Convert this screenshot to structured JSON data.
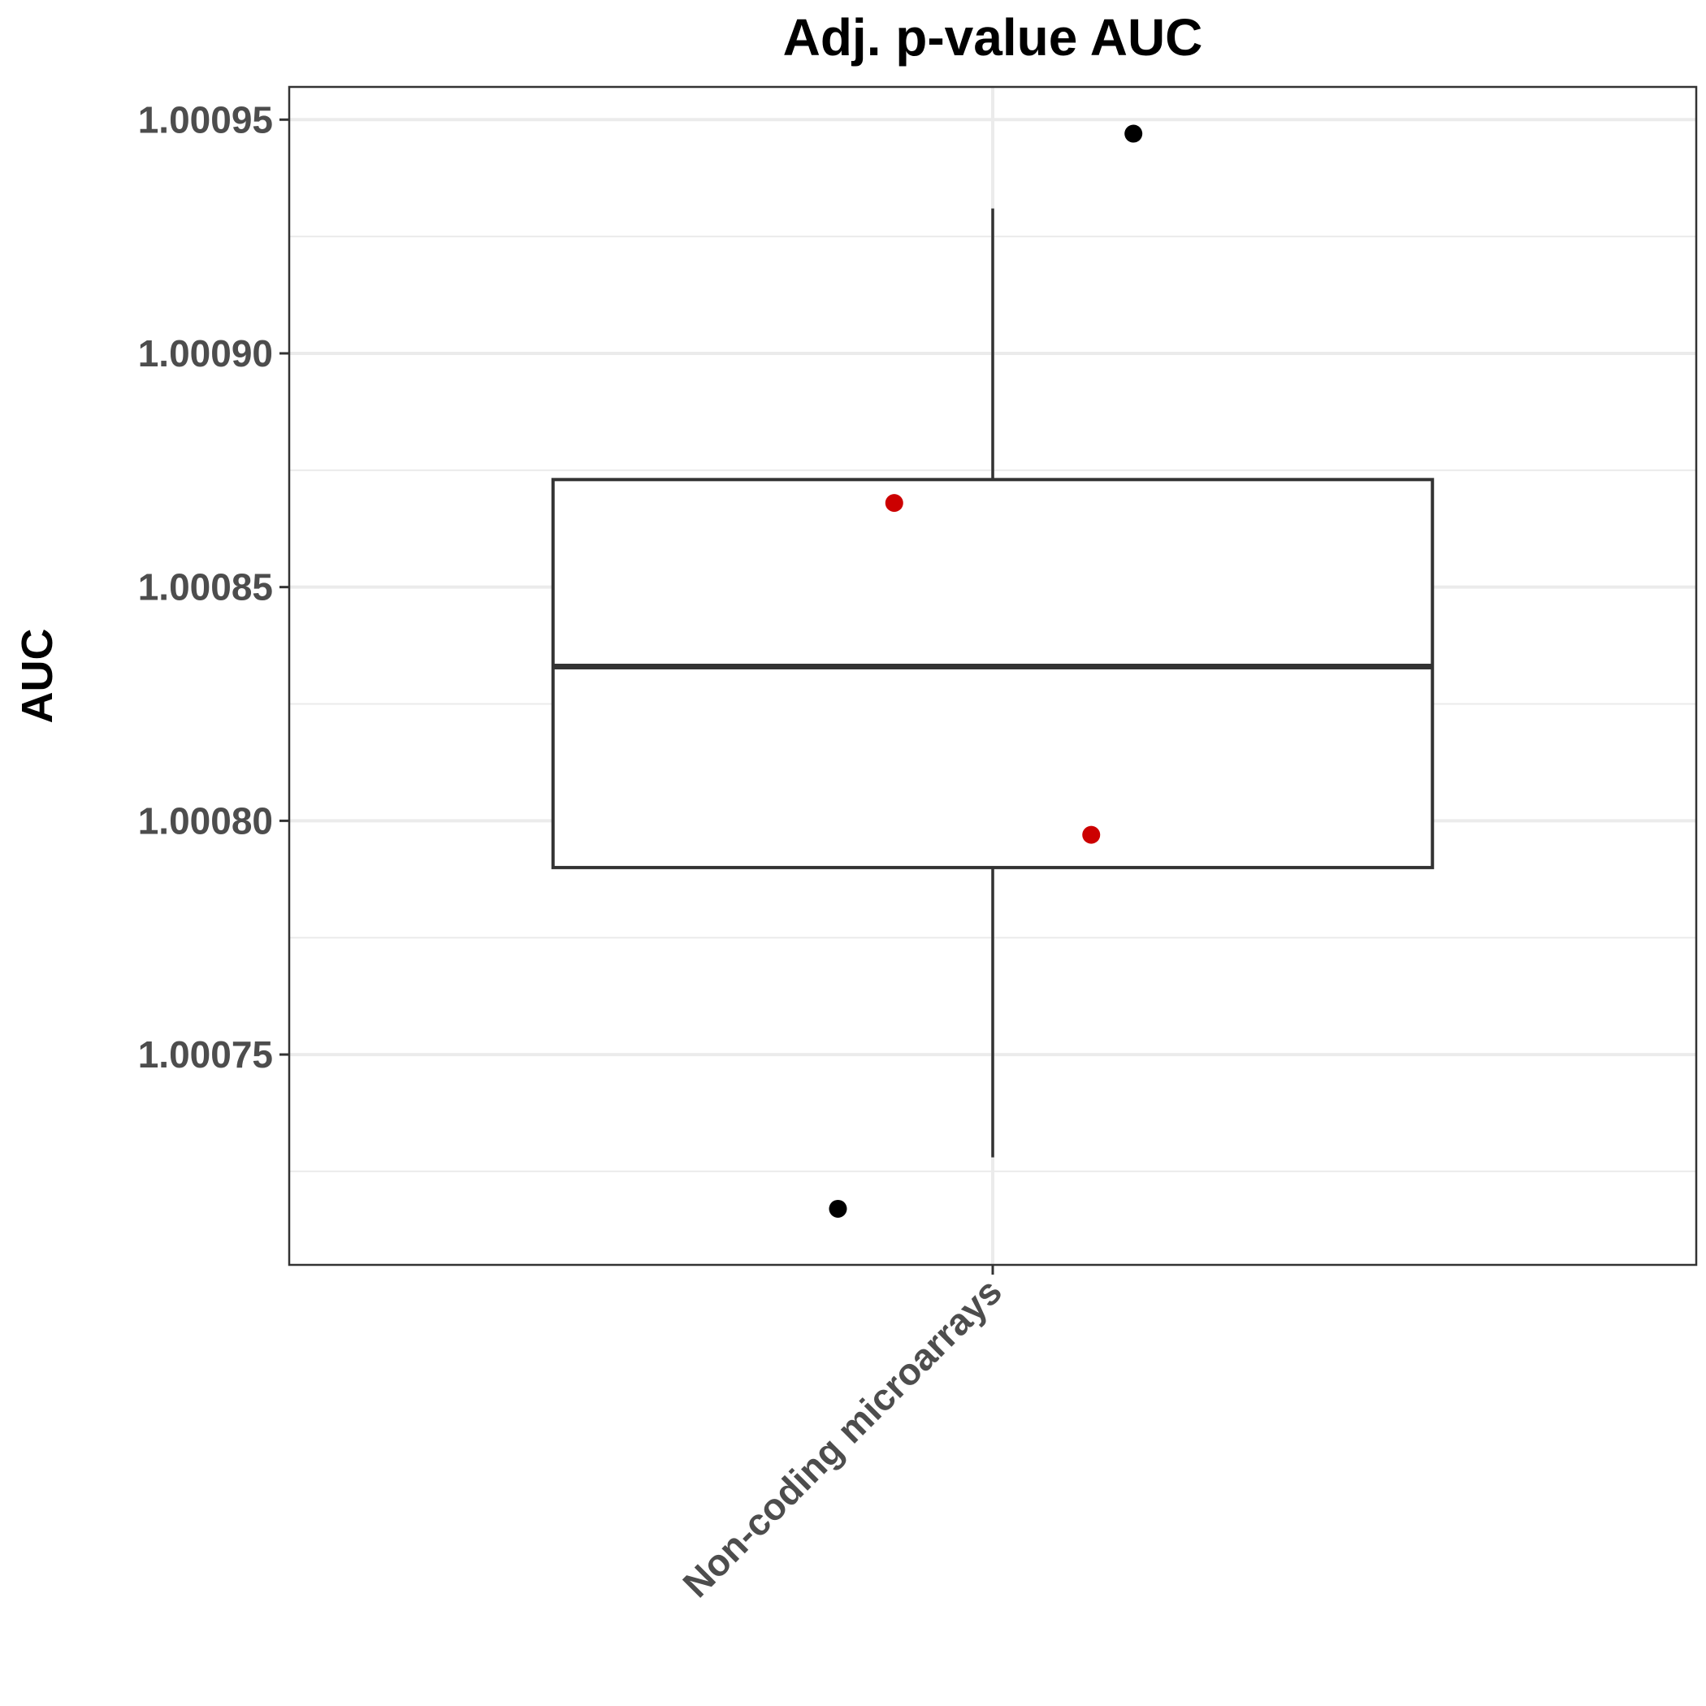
{
  "chart_data": {
    "type": "box",
    "title": "Adj. p-value AUC",
    "xlabel": "",
    "ylabel": "AUC",
    "categories": [
      "Non-coding microarrays"
    ],
    "ylim": [
      1.000705,
      1.000957
    ],
    "yticks": [
      1.00075,
      1.0008,
      1.00085,
      1.0009,
      1.00095
    ],
    "ytick_labels": [
      "1.00075",
      "1.00080",
      "1.00085",
      "1.00090",
      "1.00095"
    ],
    "grid": true,
    "boxes": [
      {
        "category": "Non-coding microarrays",
        "whisker_low": 1.000728,
        "q1": 1.00079,
        "median": 1.000833,
        "q3": 1.000873,
        "whisker_high": 1.000931
      }
    ],
    "points": [
      {
        "category": "Non-coding microarrays",
        "jitter": 0.1,
        "y": 1.000947,
        "color": "#000000"
      },
      {
        "category": "Non-coding microarrays",
        "jitter": -0.07,
        "y": 1.000868,
        "color": "#cc0000"
      },
      {
        "category": "Non-coding microarrays",
        "jitter": 0.07,
        "y": 1.000797,
        "color": "#cc0000"
      },
      {
        "category": "Non-coding microarrays",
        "jitter": -0.11,
        "y": 1.000717,
        "color": "#000000"
      }
    ],
    "colors": {
      "outlier": "#000000",
      "highlight": "#cc0000",
      "box_stroke": "#333333",
      "grid": "#ebebeb",
      "panel_border": "#333333"
    }
  }
}
